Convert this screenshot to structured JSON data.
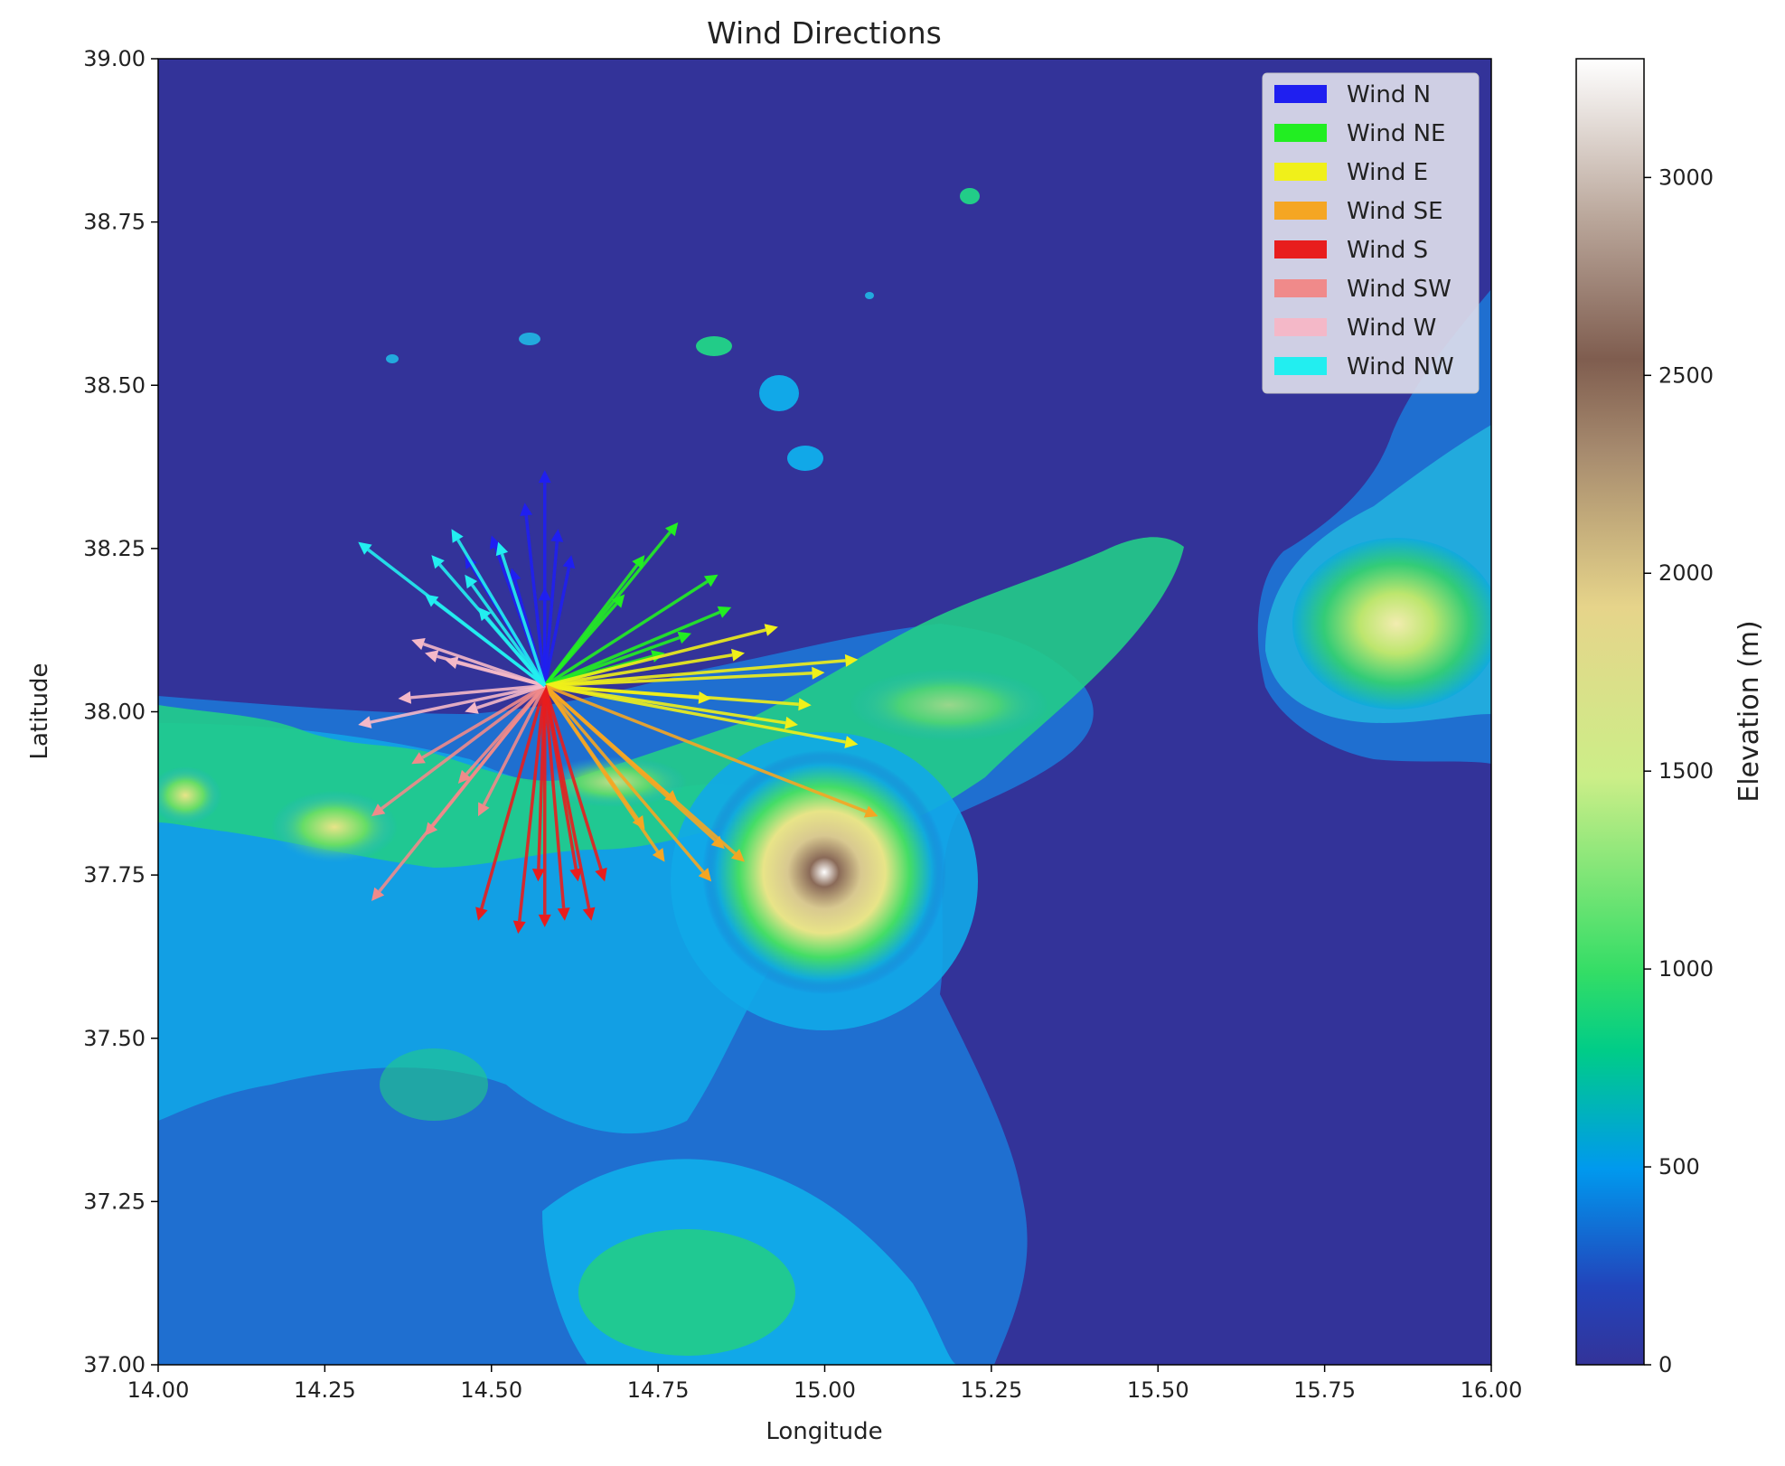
{
  "chart_data": {
    "type": "quiver",
    "title": "Wind Directions",
    "xlabel": "Longitude",
    "ylabel": "Latitude",
    "xlim": [
      14.0,
      16.0
    ],
    "ylim": [
      37.0,
      39.0
    ],
    "x_ticks": [
      "14.00",
      "14.25",
      "14.50",
      "14.75",
      "15.00",
      "15.25",
      "15.50",
      "15.75",
      "16.00"
    ],
    "y_ticks": [
      "37.00",
      "37.25",
      "37.50",
      "37.75",
      "38.00",
      "38.25",
      "38.50",
      "38.75",
      "39.00"
    ],
    "grid": false,
    "legend_position": "top-right",
    "origin": {
      "lon": 14.58,
      "lat": 38.04
    },
    "series": [
      {
        "name": "Wind N",
        "color": "#1f1ff0",
        "vectors": [
          [
            0.0,
            0.33
          ],
          [
            -0.03,
            0.28
          ],
          [
            0.02,
            0.24
          ],
          [
            -0.08,
            0.23
          ],
          [
            0.04,
            0.2
          ],
          [
            -0.12,
            0.2
          ],
          [
            -0.05,
            0.18
          ],
          [
            0.0,
            0.15
          ]
        ]
      },
      {
        "name": "Wind NE",
        "color": "#22ee22",
        "vectors": [
          [
            0.2,
            0.25
          ],
          [
            0.26,
            0.17
          ],
          [
            0.15,
            0.2
          ],
          [
            0.28,
            0.12
          ],
          [
            0.22,
            0.08
          ],
          [
            0.12,
            0.14
          ],
          [
            0.18,
            0.05
          ]
        ]
      },
      {
        "name": "Wind E",
        "color": "#f0f01a",
        "vectors": [
          [
            0.47,
            -0.09
          ],
          [
            0.47,
            0.04
          ],
          [
            0.42,
            0.02
          ],
          [
            0.35,
            0.09
          ],
          [
            0.4,
            -0.03
          ],
          [
            0.3,
            0.05
          ],
          [
            0.25,
            -0.02
          ],
          [
            0.38,
            -0.06
          ]
        ]
      },
      {
        "name": "Wind SE",
        "color": "#f5a623",
        "vectors": [
          [
            0.5,
            -0.2
          ],
          [
            0.27,
            -0.25
          ],
          [
            0.3,
            -0.27
          ],
          [
            0.25,
            -0.3
          ],
          [
            0.18,
            -0.27
          ],
          [
            0.2,
            -0.18
          ],
          [
            0.15,
            -0.22
          ]
        ]
      },
      {
        "name": "Wind S",
        "color": "#e81d1d",
        "vectors": [
          [
            -0.1,
            -0.36
          ],
          [
            -0.04,
            -0.38
          ],
          [
            0.0,
            -0.37
          ],
          [
            0.03,
            -0.36
          ],
          [
            0.07,
            -0.36
          ],
          [
            0.05,
            -0.3
          ],
          [
            -0.01,
            -0.3
          ],
          [
            0.09,
            -0.3
          ]
        ]
      },
      {
        "name": "Wind SW",
        "color": "#f08a8a",
        "vectors": [
          [
            -0.26,
            -0.33
          ],
          [
            -0.26,
            -0.2
          ],
          [
            -0.18,
            -0.23
          ],
          [
            -0.13,
            -0.15
          ],
          [
            -0.2,
            -0.12
          ],
          [
            -0.1,
            -0.2
          ]
        ]
      },
      {
        "name": "Wind W",
        "color": "#f4b8c8",
        "vectors": [
          [
            -0.28,
            -0.06
          ],
          [
            -0.2,
            0.07
          ],
          [
            -0.22,
            -0.02
          ],
          [
            -0.15,
            0.04
          ],
          [
            -0.12,
            -0.04
          ],
          [
            -0.18,
            0.05
          ]
        ]
      },
      {
        "name": "Wind NW",
        "color": "#22eef0",
        "vectors": [
          [
            -0.28,
            0.22
          ],
          [
            -0.17,
            0.2
          ],
          [
            -0.14,
            0.24
          ],
          [
            -0.12,
            0.17
          ],
          [
            -0.07,
            0.22
          ],
          [
            -0.18,
            0.14
          ],
          [
            -0.1,
            0.12
          ]
        ]
      }
    ],
    "background": {
      "type": "elevation-heatmap",
      "colormap": "terrain",
      "colorbar": {
        "label": "Elevation (m)",
        "ticks": [
          "0",
          "500",
          "1000",
          "1500",
          "2000",
          "2500",
          "3000"
        ],
        "range": [
          0,
          3300
        ]
      }
    }
  }
}
